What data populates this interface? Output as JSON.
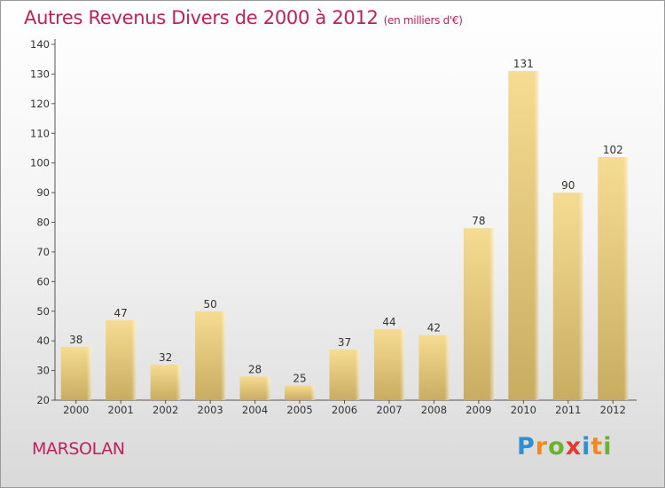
{
  "chart_data": {
    "type": "bar",
    "title": "Autres Revenus Divers de 2000 à 2012",
    "subtitle": "(en milliers d'€)",
    "categories": [
      "2000",
      "2001",
      "2002",
      "2003",
      "2004",
      "2005",
      "2006",
      "2007",
      "2008",
      "2009",
      "2010",
      "2011",
      "2012"
    ],
    "values": [
      38,
      47,
      32,
      50,
      28,
      25,
      37,
      44,
      42,
      78,
      131,
      90,
      102
    ],
    "ylim": [
      20,
      140
    ],
    "yticks": [
      20,
      30,
      40,
      50,
      60,
      70,
      80,
      90,
      100,
      110,
      120,
      130,
      140
    ],
    "grid": false,
    "bar_color": "#e8cf84"
  },
  "commune": "MARSOLAN",
  "logo": {
    "text": "Proxiti",
    "letters": [
      {
        "char": "P",
        "color": "#2f8fd0"
      },
      {
        "char": "r",
        "color": "#f08a1c"
      },
      {
        "char": "o",
        "color": "#6bb22e"
      },
      {
        "char": "x",
        "color": "#e23a2e"
      },
      {
        "char": "i",
        "color": "#2f8fd0"
      },
      {
        "char": "t",
        "color": "#f08a1c"
      },
      {
        "char": "i",
        "color": "#6bb22e"
      }
    ]
  },
  "colors": {
    "accent": "#c0205a",
    "axis": "#555555",
    "text": "#333333"
  }
}
